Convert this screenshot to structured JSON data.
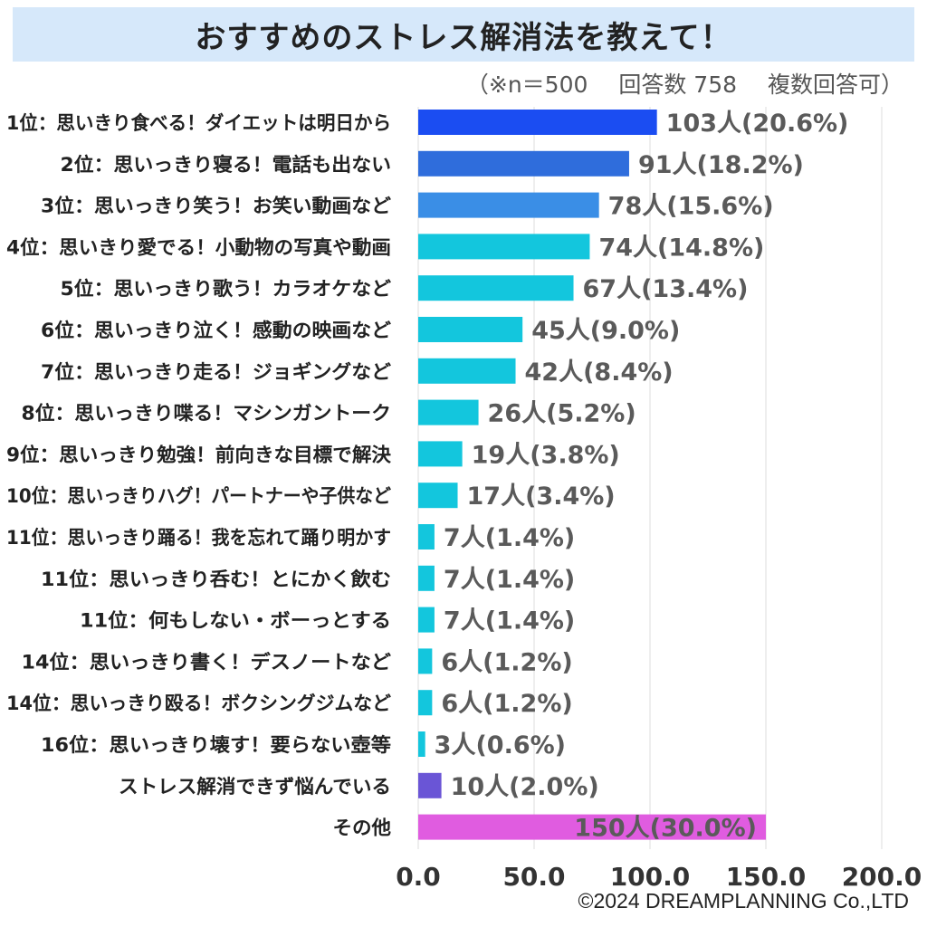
{
  "chart_data": {
    "type": "bar",
    "orientation": "horizontal",
    "title": "おすすめのストレス解消法を教えて！",
    "note": {
      "sample": "（※n＝500",
      "answers": "回答数 758",
      "multi": "複数回答可）"
    },
    "categories": [
      "1位：思いきり食べる！ダイエットは明日から",
      "2位：思いっきり寝る！電話も出ない",
      "3位：思いっきり笑う！お笑い動画など",
      "4位：思いきり愛でる！小動物の写真や動画",
      "5位：思いっきり歌う！カラオケなど",
      "6位：思いっきり泣く！感動の映画など",
      "7位：思いっきり走る！ジョギングなど",
      "8位：思いっきり喋る！マシンガントーク",
      "9位：思いっきり勉強！前向きな目標で解決",
      "10位：思いっきりハグ！パートナーや子供など",
      "11位：思いっきり踊る！我を忘れて踊り明かす",
      "11位：思いっきり呑む！とにかく飲む",
      "11位：何もしない・ボーっとする",
      "14位：思いっきり書く！デスノートなど",
      "14位：思いっきり殴る！ボクシングジムなど",
      "16位：思いっきり壊す！要らない壺等",
      "ストレス解消できず悩んでいる",
      "その他"
    ],
    "values": [
      103,
      91,
      78,
      74,
      67,
      45,
      42,
      26,
      19,
      17,
      7,
      7,
      7,
      6,
      6,
      3,
      10,
      150
    ],
    "data_labels": [
      "103人(20.6%)",
      "91人(18.2%)",
      "78人(15.6%)",
      "74人(14.8%)",
      "67人(13.4%)",
      "45人(9.0%)",
      "42人(8.4%)",
      "26人(5.2%)",
      "19人(3.8%)",
      "17人(3.4%)",
      "7人(1.4%)",
      "7人(1.4%)",
      "7人(1.4%)",
      "6人(1.2%)",
      "6人(1.2%)",
      "3人(0.6%)",
      "10人(2.0%)",
      "150人(30.0%)"
    ],
    "colors": [
      "#1b4df2",
      "#2f6ddc",
      "#3a8ee6",
      "#13c6dd",
      "#13c6dd",
      "#13c6dd",
      "#13c6dd",
      "#13c6dd",
      "#13c6dd",
      "#13c6dd",
      "#13c6dd",
      "#13c6dd",
      "#13c6dd",
      "#13c6dd",
      "#13c6dd",
      "#13c6dd",
      "#6a55d6",
      "#e05ce0"
    ],
    "xlim": [
      0,
      200
    ],
    "xticks": [
      0,
      50,
      100,
      150,
      200
    ],
    "xtick_labels": [
      "0.0",
      "50.0",
      "100.0",
      "150.0",
      "200.0"
    ],
    "grid": true,
    "label_color": "#5a5a5a"
  },
  "copyright": "©2024 DREAMPLANNING Co.,LTD"
}
